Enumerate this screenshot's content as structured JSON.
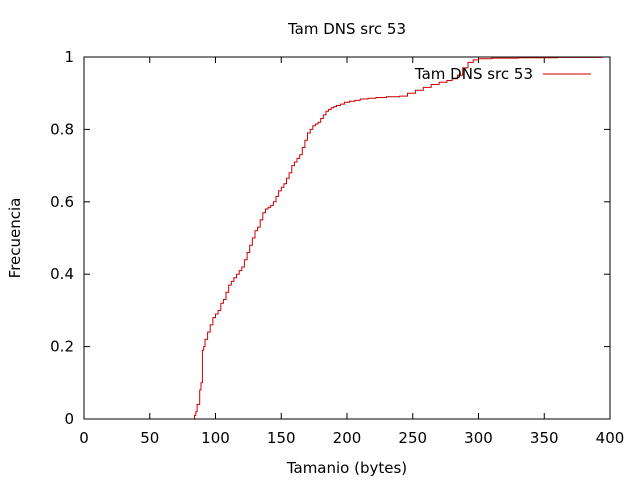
{
  "chart_data": {
    "type": "line",
    "style": "step",
    "title": "Tam DNS src 53",
    "xlabel": "Tamanio (bytes)",
    "ylabel": "Frecuencia",
    "xlim": [
      0,
      400
    ],
    "ylim": [
      0,
      1
    ],
    "x_ticks": [
      "0",
      "50",
      "100",
      "150",
      "200",
      "250",
      "300",
      "350",
      "400"
    ],
    "y_ticks": [
      "0",
      "0.2",
      "0.4",
      "0.6",
      "0.8",
      "1"
    ],
    "grid": false,
    "legend": {
      "position": "top-right",
      "entries": [
        "Tam DNS src 53"
      ]
    },
    "series": [
      {
        "name": "Tam DNS src 53",
        "color": "#cc0000",
        "x": [
          82,
          84,
          85,
          86,
          88,
          89,
          90,
          91,
          92,
          94,
          96,
          98,
          100,
          102,
          104,
          106,
          108,
          110,
          112,
          114,
          116,
          118,
          120,
          122,
          124,
          126,
          128,
          130,
          132,
          134,
          136,
          138,
          140,
          142,
          144,
          146,
          148,
          150,
          152,
          154,
          156,
          158,
          160,
          162,
          164,
          166,
          168,
          170,
          172,
          174,
          176,
          178,
          180,
          182,
          184,
          186,
          188,
          190,
          192,
          195,
          198,
          202,
          206,
          210,
          216,
          222,
          230,
          240,
          246,
          252,
          258,
          264,
          270,
          276,
          280,
          284,
          288,
          292,
          296,
          300,
          310,
          330,
          360,
          394
        ],
        "y": [
          0.0,
          0.01,
          0.02,
          0.04,
          0.08,
          0.1,
          0.19,
          0.2,
          0.22,
          0.24,
          0.26,
          0.28,
          0.29,
          0.3,
          0.32,
          0.33,
          0.35,
          0.37,
          0.38,
          0.39,
          0.4,
          0.41,
          0.42,
          0.44,
          0.46,
          0.48,
          0.5,
          0.52,
          0.53,
          0.55,
          0.57,
          0.58,
          0.585,
          0.59,
          0.6,
          0.615,
          0.63,
          0.64,
          0.65,
          0.665,
          0.68,
          0.7,
          0.71,
          0.72,
          0.73,
          0.75,
          0.77,
          0.79,
          0.8,
          0.81,
          0.815,
          0.82,
          0.83,
          0.84,
          0.85,
          0.855,
          0.86,
          0.863,
          0.866,
          0.87,
          0.875,
          0.878,
          0.88,
          0.884,
          0.886,
          0.888,
          0.89,
          0.892,
          0.9,
          0.908,
          0.916,
          0.924,
          0.93,
          0.935,
          0.94,
          0.95,
          0.97,
          0.985,
          0.992,
          0.995,
          0.997,
          0.998,
          0.999,
          1.0
        ]
      }
    ]
  }
}
